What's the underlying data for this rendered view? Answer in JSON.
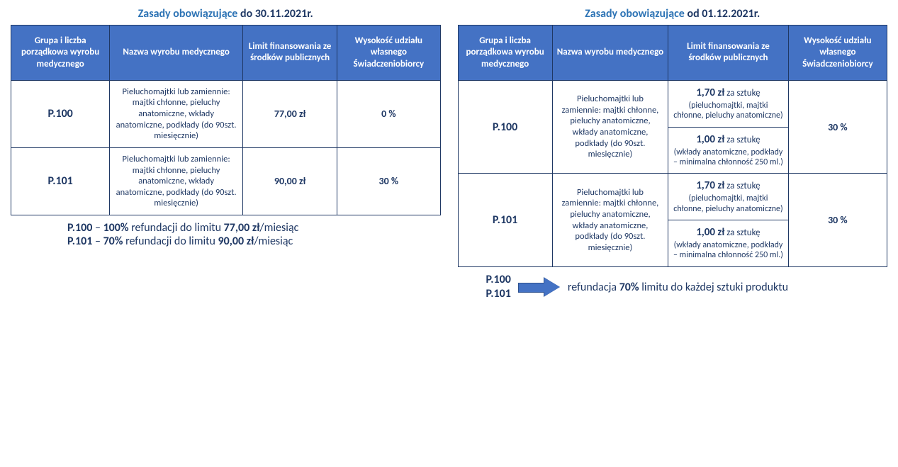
{
  "colors": {
    "header_bg": "#4472c4",
    "header_text": "#ffffff",
    "border": "#1f3864",
    "text_dark": "#1f3864",
    "text_blue": "#2e74b5"
  },
  "left": {
    "title_prefix": "Zasady obowiązujące ",
    "title_date": "do 30.11.2021r.",
    "headers": [
      "Grupa i liczba porządkowa wyrobu medycznego",
      "Nazwa wyrobu medycznego",
      "Limit finansowania ze środków publicznych",
      "Wysokość udziału własnego Świadczeniobiorcy"
    ],
    "col_widths": [
      "23%",
      "31%",
      "22%",
      "24%"
    ],
    "rows": [
      {
        "code": "P.100",
        "name": "Pieluchomajtki lub zamiennie: majtki chłonne, pieluchy anatomiczne, wkłady anatomiczne, podkłady (do 90szt. miesięcznie)",
        "limit": "77,00 zł",
        "share": "0 %"
      },
      {
        "code": "P.101",
        "name": "Pieluchomajtki lub zamiennie: majtki chłonne, pieluchy anatomiczne, wkłady anatomiczne, podkłady (do 90szt. miesięcznie)",
        "limit": "90,00 zł",
        "share": "30 %"
      }
    ],
    "footer": {
      "l1_code": "P.100",
      "l1_mid": " – ",
      "l1_pct": "100%",
      "l1_txt1": " refundacji do limitu ",
      "l1_amt": "77,00 zł",
      "l1_txt2": "/miesiąc",
      "l2_code": "P.101",
      "l2_mid": " – ",
      "l2_pct": "70%",
      "l2_txt1": " refundacji do limitu ",
      "l2_amt": "90,00 zł",
      "l2_txt2": "/miesiąc"
    }
  },
  "right": {
    "title_prefix": "Zasady obowiązujące ",
    "title_date": "od 01.12.2021r.",
    "headers": [
      "Grupa i liczba porządkowa wyrobu medycznego",
      "Nazwa wyrobu medycznego",
      "Limit finansowania ze środków publicznych",
      "Wysokość udziału własnego Świadczeniobiorcy"
    ],
    "col_widths": [
      "22%",
      "27%",
      "28%",
      "23%"
    ],
    "rows": [
      {
        "code": "P.100",
        "name": "Pieluchomajtki lub zamiennie: majtki chłonne, pieluchy anatomiczne, wkłady anatomiczne, podkłady (do 90szt. miesięcznie)",
        "limit_a_price": "1,70 zł",
        "limit_a_rest": " za sztukę",
        "limit_a_note": "(pieluchomajtki, majtki chłonne, pieluchy anatomiczne)",
        "limit_b_price": "1,00 zł",
        "limit_b_rest": " za sztukę",
        "limit_b_note": "(wkłady anatomiczne, podkłady – minimalna chłonność 250 ml.)",
        "share": "30 %"
      },
      {
        "code": "P.101",
        "name": "Pieluchomajtki lub zamiennie: majtki chłonne, pieluchy anatomiczne, wkłady anatomiczne, podkłady (do 90szt. miesięcznie)",
        "limit_a_price": "1,70 zł",
        "limit_a_rest": " za sztukę",
        "limit_a_note": "(pieluchomajtki, majtki chłonne, pieluchy anatomiczne)",
        "limit_b_price": "1,00 zł",
        "limit_b_rest": " za sztukę",
        "limit_b_note": "(wkłady anatomiczne, podkłady – minimalna chłonność 250 ml.)",
        "share": "30 %"
      }
    ],
    "footer": {
      "code1": "P.100",
      "code2": "P.101",
      "txt1": "refundacja ",
      "pct": "70%",
      "txt2": " limitu do każdej sztuki produktu"
    }
  }
}
